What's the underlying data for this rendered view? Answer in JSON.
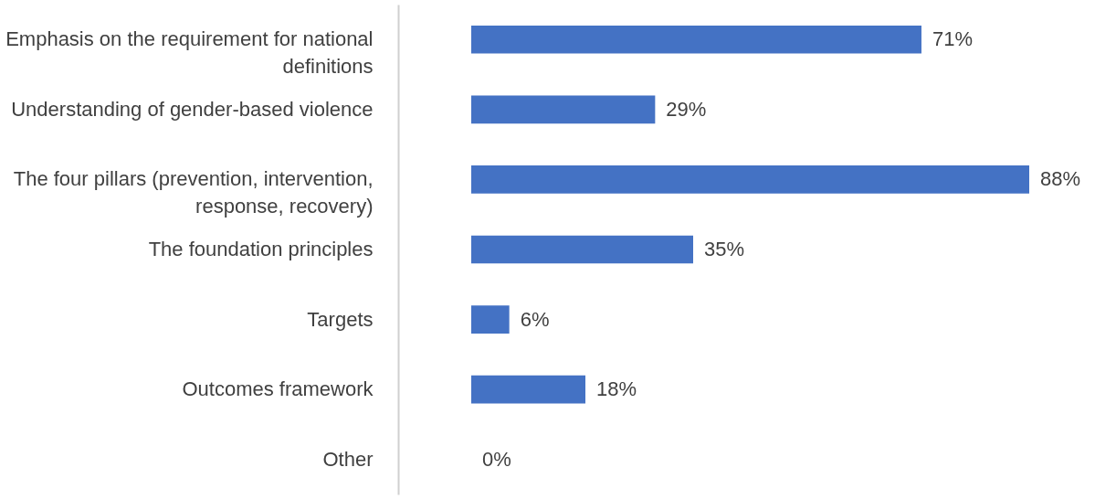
{
  "chart_data": {
    "type": "bar",
    "orientation": "horizontal",
    "categories": [
      "Emphasis on the requirement for national definitions",
      "Understanding of gender-based violence",
      "The four pillars (prevention, intervention, response, recovery)",
      "The foundation principles",
      "Targets",
      "Outcomes framework",
      "Other"
    ],
    "values": [
      71,
      29,
      88,
      35,
      6,
      18,
      0
    ],
    "value_labels": [
      "71%",
      "29%",
      "88%",
      "35%",
      "6%",
      "18%",
      "0%"
    ],
    "color": "#4472c4"
  }
}
